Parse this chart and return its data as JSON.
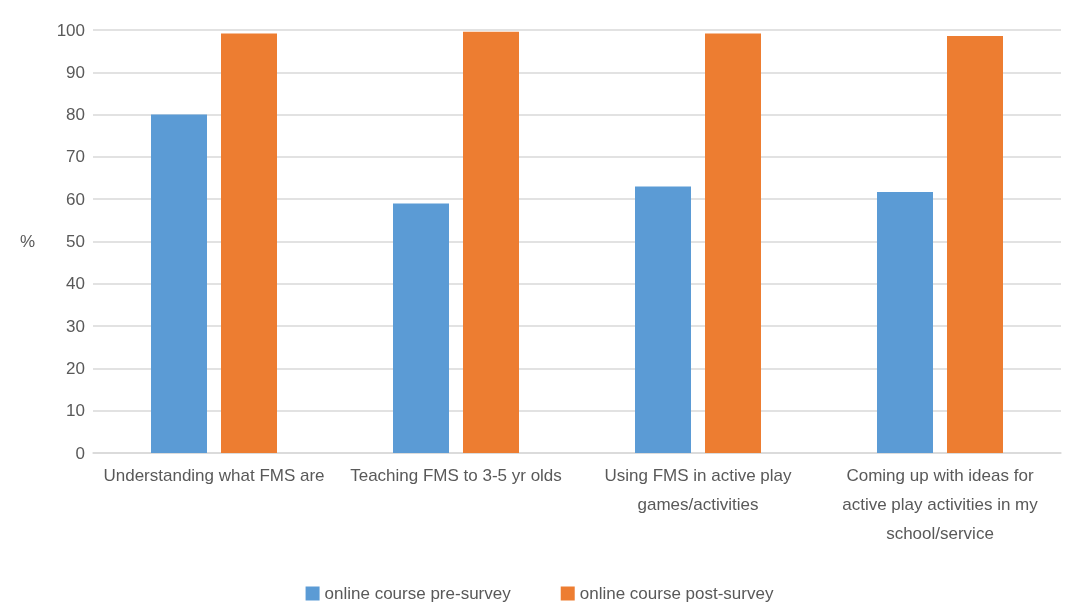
{
  "chart_data": {
    "type": "bar",
    "ylabel": "%",
    "categories": [
      "Understanding what FMS are",
      "Teaching FMS to 3-5 yr olds",
      "Using FMS in active play games/activities",
      "Coming up with ideas for active play activities in my school/service"
    ],
    "series": [
      {
        "name": "online course pre-survey",
        "color": "#5b9bd5",
        "values": [
          80,
          59,
          63,
          61.7
        ]
      },
      {
        "name": "online course post-survey",
        "color": "#ed7d31",
        "values": [
          99.2,
          99.6,
          99.2,
          98.6
        ]
      }
    ],
    "ylim": [
      0,
      100
    ],
    "yticks": [
      0,
      10,
      20,
      30,
      40,
      50,
      60,
      70,
      80,
      90,
      100
    ],
    "grid": "y",
    "legend": "bottom"
  }
}
